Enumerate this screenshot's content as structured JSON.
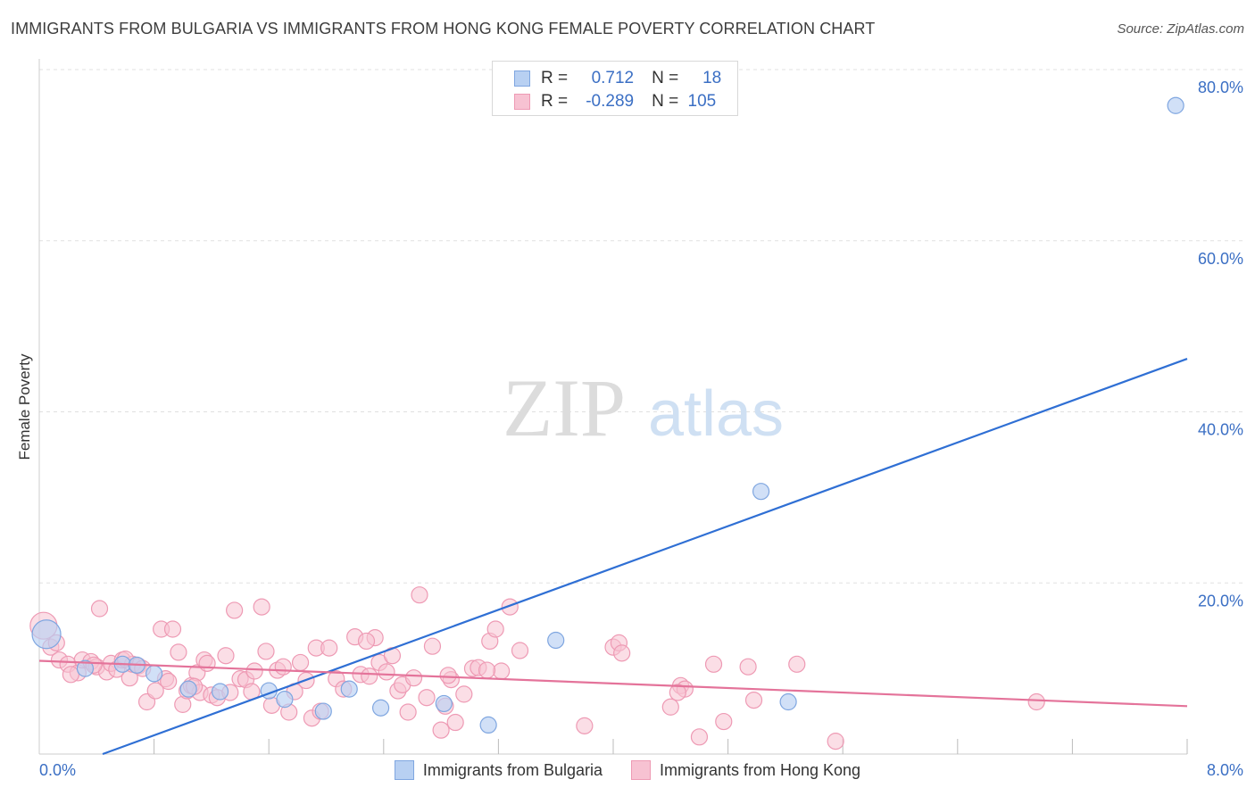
{
  "title": "IMMIGRANTS FROM BULGARIA VS IMMIGRANTS FROM HONG KONG FEMALE POVERTY CORRELATION CHART",
  "source": "Source: ZipAtlas.com",
  "watermark": {
    "zip": "ZIP",
    "atlas": "atlas"
  },
  "colors": {
    "blue_fill": "#b8d0f2",
    "blue_stroke": "#7fa6e0",
    "blue_line": "#2f6fd4",
    "pink_fill": "#f7c2d2",
    "pink_stroke": "#ee9ab4",
    "pink_line": "#e4739a",
    "axis_text": "#3b6fc4"
  },
  "legend": {
    "rows": [
      {
        "r_label": "R =",
        "r_value": "0.712",
        "n_label": "N =",
        "n_value": "18"
      },
      {
        "r_label": "R =",
        "r_value": "-0.289",
        "n_label": "N =",
        "n_value": "105"
      }
    ]
  },
  "bottom_legend": [
    "Immigrants from Bulgaria",
    "Immigrants from Hong Kong"
  ],
  "chart_data": {
    "type": "scatter",
    "title": "IMMIGRANTS FROM BULGARIA VS IMMIGRANTS FROM HONG KONG FEMALE POVERTY CORRELATION CHART",
    "xlabel": "",
    "ylabel": "Female Poverty",
    "xlim": [
      0,
      8
    ],
    "ylim": [
      0,
      80
    ],
    "x_tick_labels": [
      "0.0%",
      "8.0%"
    ],
    "y_ticks": [
      20,
      40,
      60,
      80
    ],
    "y_tick_labels": [
      "20.0%",
      "40.0%",
      "60.0%",
      "80.0%"
    ],
    "grid": "horizontal dashed",
    "series": [
      {
        "name": "Immigrants from Bulgaria",
        "r": 0.712,
        "n": 18,
        "points": [
          [
            0.05,
            14.0
          ],
          [
            0.32,
            10.0
          ],
          [
            0.58,
            10.5
          ],
          [
            0.8,
            9.4
          ],
          [
            1.04,
            7.6
          ],
          [
            1.26,
            7.3
          ],
          [
            1.6,
            7.4
          ],
          [
            1.71,
            6.4
          ],
          [
            1.98,
            5.0
          ],
          [
            2.16,
            7.6
          ],
          [
            2.38,
            5.4
          ],
          [
            2.82,
            5.9
          ],
          [
            3.13,
            3.4
          ],
          [
            3.6,
            13.3
          ],
          [
            5.03,
            30.7
          ],
          [
            5.22,
            6.1
          ],
          [
            7.92,
            75.8
          ],
          [
            0.68,
            10.4
          ]
        ],
        "trend": {
          "x0": 0,
          "y0": -2.7,
          "x1": 8,
          "y1": 46.2
        }
      },
      {
        "name": "Immigrants from Hong Kong",
        "r": -0.289,
        "n": 105,
        "points": [
          [
            0.03,
            15.0
          ],
          [
            0.08,
            12.5
          ],
          [
            0.14,
            11.0
          ],
          [
            0.2,
            10.5
          ],
          [
            0.27,
            9.5
          ],
          [
            0.3,
            11.0
          ],
          [
            0.36,
            10.8
          ],
          [
            0.4,
            10.2
          ],
          [
            0.42,
            17.0
          ],
          [
            0.47,
            9.6
          ],
          [
            0.5,
            10.6
          ],
          [
            0.54,
            9.9
          ],
          [
            0.58,
            11.0
          ],
          [
            0.63,
            8.9
          ],
          [
            0.65,
            10.5
          ],
          [
            0.69,
            10.3
          ],
          [
            0.72,
            10.0
          ],
          [
            0.75,
            6.1
          ],
          [
            0.81,
            7.4
          ],
          [
            0.85,
            14.6
          ],
          [
            0.88,
            8.8
          ],
          [
            0.93,
            14.6
          ],
          [
            0.97,
            11.9
          ],
          [
            1.0,
            5.8
          ],
          [
            1.03,
            7.4
          ],
          [
            1.06,
            8.0
          ],
          [
            1.1,
            9.5
          ],
          [
            1.12,
            7.2
          ],
          [
            1.15,
            11.0
          ],
          [
            1.17,
            10.6
          ],
          [
            1.2,
            6.9
          ],
          [
            1.24,
            6.6
          ],
          [
            1.3,
            11.5
          ],
          [
            1.33,
            7.2
          ],
          [
            1.36,
            16.8
          ],
          [
            1.4,
            8.8
          ],
          [
            1.44,
            8.7
          ],
          [
            1.48,
            7.3
          ],
          [
            1.5,
            9.7
          ],
          [
            1.55,
            17.2
          ],
          [
            1.58,
            12.0
          ],
          [
            1.62,
            5.7
          ],
          [
            1.66,
            9.8
          ],
          [
            1.7,
            10.2
          ],
          [
            1.74,
            4.9
          ],
          [
            1.78,
            7.3
          ],
          [
            1.82,
            10.7
          ],
          [
            1.86,
            8.6
          ],
          [
            1.9,
            4.2
          ],
          [
            1.93,
            12.4
          ],
          [
            1.96,
            5.0
          ],
          [
            2.02,
            12.4
          ],
          [
            2.07,
            8.8
          ],
          [
            2.12,
            7.6
          ],
          [
            2.2,
            13.7
          ],
          [
            2.24,
            9.3
          ],
          [
            2.3,
            9.1
          ],
          [
            2.34,
            13.6
          ],
          [
            2.37,
            10.7
          ],
          [
            2.42,
            9.6
          ],
          [
            2.46,
            11.5
          ],
          [
            2.5,
            7.4
          ],
          [
            2.53,
            8.1
          ],
          [
            2.57,
            4.9
          ],
          [
            2.61,
            8.9
          ],
          [
            2.65,
            18.6
          ],
          [
            2.7,
            6.6
          ],
          [
            2.74,
            12.6
          ],
          [
            2.8,
            2.8
          ],
          [
            2.83,
            5.6
          ],
          [
            2.87,
            8.7
          ],
          [
            2.9,
            3.7
          ],
          [
            2.96,
            7.0
          ],
          [
            3.02,
            10.0
          ],
          [
            3.06,
            10.1
          ],
          [
            3.14,
            13.2
          ],
          [
            3.18,
            14.6
          ],
          [
            3.22,
            9.7
          ],
          [
            3.28,
            17.2
          ],
          [
            3.35,
            12.1
          ],
          [
            3.8,
            3.3
          ],
          [
            4.0,
            12.5
          ],
          [
            4.04,
            13.0
          ],
          [
            4.06,
            11.8
          ],
          [
            4.4,
            5.5
          ],
          [
            4.47,
            8.0
          ],
          [
            4.5,
            7.6
          ],
          [
            4.6,
            2.0
          ],
          [
            4.7,
            10.5
          ],
          [
            4.77,
            3.8
          ],
          [
            4.94,
            10.2
          ],
          [
            4.98,
            6.3
          ],
          [
            5.28,
            10.5
          ],
          [
            5.55,
            1.5
          ],
          [
            6.95,
            6.1
          ],
          [
            0.12,
            13.0
          ],
          [
            0.22,
            9.3
          ],
          [
            0.38,
            10.4
          ],
          [
            0.6,
            11.1
          ],
          [
            0.9,
            8.5
          ],
          [
            1.08,
            7.9
          ],
          [
            2.28,
            13.2
          ],
          [
            2.85,
            9.2
          ],
          [
            3.12,
            9.8
          ],
          [
            4.45,
            7.2
          ]
        ],
        "trend": {
          "x0": 0,
          "y0": 10.9,
          "x1": 8,
          "y1": 5.6
        }
      }
    ]
  }
}
